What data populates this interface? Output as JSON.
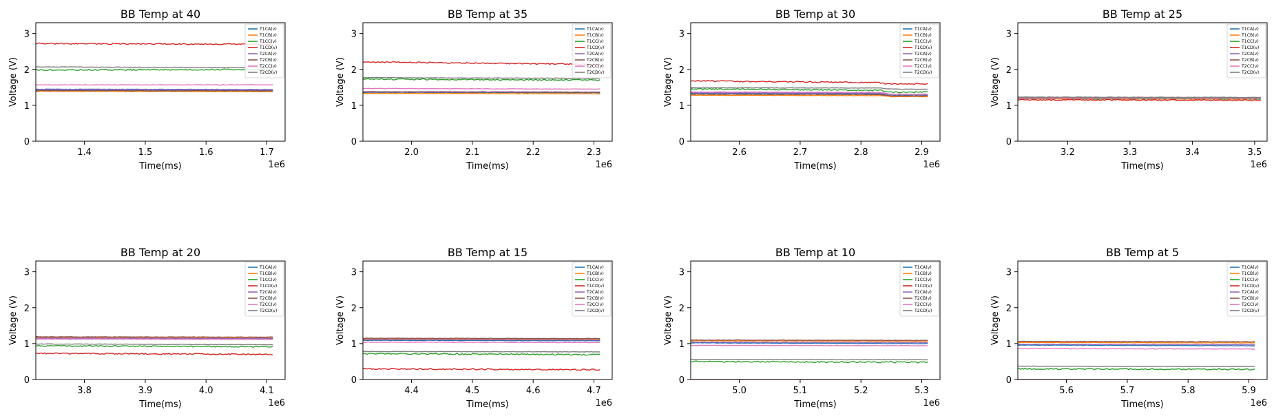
{
  "figure": {
    "series_names": [
      "T1CA(v)",
      "T1CB(v)",
      "T1CC(v)",
      "T1CD(v)",
      "T2CA(v)",
      "T2CB(v)",
      "T2CC(v)",
      "T2CD(v)"
    ],
    "series_colors": [
      "#1f77b4",
      "#ff7f0e",
      "#2ca02c",
      "#d62728",
      "#9467bd",
      "#8c564b",
      "#e377c2",
      "#7f7f7f"
    ],
    "xlabel": "Time(ms)",
    "ylabel": "Voltage (V)",
    "x_offset_text": "1e6",
    "legend_location": "upper right"
  },
  "chart_data": [
    {
      "type": "line",
      "title": "BB Temp at 40",
      "xlim": [
        1.32,
        1.73
      ],
      "ylim": [
        0,
        3.3
      ],
      "xticks": [
        1.4,
        1.5,
        1.6,
        1.7
      ],
      "xtick_labels": [
        "1.4",
        "1.5",
        "1.6",
        "1.7"
      ],
      "yticks": [
        0,
        1,
        2,
        3
      ],
      "ytick_labels": [
        "0",
        "1",
        "2",
        "3"
      ],
      "x": [
        1.32,
        1.71
      ],
      "series": [
        {
          "name": "T1CA(v)",
          "values": [
            1.43,
            1.42
          ]
        },
        {
          "name": "T1CB(v)",
          "values": [
            1.39,
            1.38
          ]
        },
        {
          "name": "T1CC(v)",
          "values": [
            1.98,
            2.0
          ]
        },
        {
          "name": "T1CD(v)",
          "values": [
            2.72,
            2.7
          ]
        },
        {
          "name": "T2CA(v)",
          "values": [
            1.45,
            1.44
          ]
        },
        {
          "name": "T2CB(v)",
          "values": [
            1.41,
            1.4
          ]
        },
        {
          "name": "T2CC(v)",
          "values": [
            1.57,
            1.57
          ]
        },
        {
          "name": "T2CD(v)",
          "values": [
            2.07,
            2.05
          ]
        }
      ]
    },
    {
      "type": "line",
      "title": "BB Temp at 35",
      "xlim": [
        1.92,
        2.33
      ],
      "ylim": [
        0,
        3.3
      ],
      "xticks": [
        2.0,
        2.1,
        2.2,
        2.3
      ],
      "xtick_labels": [
        "2.0",
        "2.1",
        "2.2",
        "2.3"
      ],
      "yticks": [
        0,
        1,
        2,
        3
      ],
      "ytick_labels": [
        "0",
        "1",
        "2",
        "3"
      ],
      "x": [
        1.92,
        2.31
      ],
      "series": [
        {
          "name": "T1CA(v)",
          "values": [
            1.36,
            1.35
          ]
        },
        {
          "name": "T1CB(v)",
          "values": [
            1.33,
            1.32
          ]
        },
        {
          "name": "T1CC(v)",
          "values": [
            1.73,
            1.7
          ]
        },
        {
          "name": "T1CD(v)",
          "values": [
            2.21,
            2.14
          ]
        },
        {
          "name": "T2CA(v)",
          "values": [
            1.38,
            1.37
          ]
        },
        {
          "name": "T2CB(v)",
          "values": [
            1.37,
            1.36
          ]
        },
        {
          "name": "T2CC(v)",
          "values": [
            1.47,
            1.45
          ]
        },
        {
          "name": "T2CD(v)",
          "values": [
            1.77,
            1.75
          ]
        }
      ]
    },
    {
      "type": "line",
      "title": "BB Temp at 30",
      "xlim": [
        2.52,
        2.93
      ],
      "ylim": [
        0,
        3.3
      ],
      "xticks": [
        2.6,
        2.7,
        2.8,
        2.9
      ],
      "xtick_labels": [
        "2.6",
        "2.7",
        "2.8",
        "2.9"
      ],
      "yticks": [
        0,
        1,
        2,
        3
      ],
      "ytick_labels": [
        "0",
        "1",
        "2",
        "3"
      ],
      "x": [
        2.52,
        2.83,
        2.85,
        2.91
      ],
      "series": [
        {
          "name": "T1CA(v)",
          "values": [
            1.33,
            1.32,
            1.27,
            1.27
          ]
        },
        {
          "name": "T1CB(v)",
          "values": [
            1.28,
            1.27,
            1.24,
            1.24
          ]
        },
        {
          "name": "T1CC(v)",
          "values": [
            1.46,
            1.42,
            1.36,
            1.37
          ]
        },
        {
          "name": "T1CD(v)",
          "values": [
            1.68,
            1.63,
            1.59,
            1.6
          ]
        },
        {
          "name": "T2CA(v)",
          "values": [
            1.35,
            1.34,
            1.3,
            1.3
          ]
        },
        {
          "name": "T2CB(v)",
          "values": [
            1.31,
            1.3,
            1.26,
            1.26
          ]
        },
        {
          "name": "T2CC(v)",
          "values": [
            1.37,
            1.36,
            1.31,
            1.31
          ]
        },
        {
          "name": "T2CD(v)",
          "values": [
            1.49,
            1.48,
            1.45,
            1.45
          ]
        }
      ]
    },
    {
      "type": "line",
      "title": "BB Temp at 25",
      "xlim": [
        3.12,
        3.52
      ],
      "ylim": [
        0,
        3.3
      ],
      "xticks": [
        3.2,
        3.3,
        3.4,
        3.5
      ],
      "xtick_labels": [
        "3.2",
        "3.3",
        "3.4",
        "3.5"
      ],
      "yticks": [
        0,
        1,
        2,
        3
      ],
      "ytick_labels": [
        "0",
        "1",
        "2",
        "3"
      ],
      "x": [
        3.12,
        3.51
      ],
      "series": [
        {
          "name": "T1CA(v)",
          "values": [
            1.2,
            1.19
          ]
        },
        {
          "name": "T1CB(v)",
          "values": [
            1.18,
            1.17
          ]
        },
        {
          "name": "T1CC(v)",
          "values": [
            1.19,
            1.18
          ]
        },
        {
          "name": "T1CD(v)",
          "values": [
            1.15,
            1.14
          ]
        },
        {
          "name": "T2CA(v)",
          "values": [
            1.21,
            1.2
          ]
        },
        {
          "name": "T2CB(v)",
          "values": [
            1.22,
            1.21
          ]
        },
        {
          "name": "T2CC(v)",
          "values": [
            1.2,
            1.2
          ]
        },
        {
          "name": "T2CD(v)",
          "values": [
            1.23,
            1.22
          ]
        }
      ]
    },
    {
      "type": "line",
      "title": "BB Temp at 20",
      "xlim": [
        3.72,
        4.13
      ],
      "ylim": [
        0,
        3.3
      ],
      "xticks": [
        3.8,
        3.9,
        4.0,
        4.1
      ],
      "xtick_labels": [
        "3.8",
        "3.9",
        "4.0",
        "4.1"
      ],
      "yticks": [
        0,
        1,
        2,
        3
      ],
      "ytick_labels": [
        "0",
        "1",
        "2",
        "3"
      ],
      "x": [
        3.72,
        4.11
      ],
      "series": [
        {
          "name": "T1CA(v)",
          "values": [
            1.13,
            1.12
          ]
        },
        {
          "name": "T1CB(v)",
          "values": [
            1.17,
            1.16
          ]
        },
        {
          "name": "T1CC(v)",
          "values": [
            0.94,
            0.91
          ]
        },
        {
          "name": "T1CD(v)",
          "values": [
            0.73,
            0.7
          ]
        },
        {
          "name": "T2CA(v)",
          "values": [
            1.15,
            1.14
          ]
        },
        {
          "name": "T2CB(v)",
          "values": [
            1.19,
            1.18
          ]
        },
        {
          "name": "T2CC(v)",
          "values": [
            1.13,
            1.12
          ]
        },
        {
          "name": "T2CD(v)",
          "values": [
            0.99,
            0.97
          ]
        }
      ]
    },
    {
      "type": "line",
      "title": "BB Temp at 15",
      "xlim": [
        4.32,
        4.73
      ],
      "ylim": [
        0,
        3.3
      ],
      "xticks": [
        4.4,
        4.5,
        4.6,
        4.7
      ],
      "xtick_labels": [
        "4.4",
        "4.5",
        "4.6",
        "4.7"
      ],
      "yticks": [
        0,
        1,
        2,
        3
      ],
      "ytick_labels": [
        "0",
        "1",
        "2",
        "3"
      ],
      "x": [
        4.32,
        4.71
      ],
      "series": [
        {
          "name": "T1CA(v)",
          "values": [
            1.09,
            1.08
          ]
        },
        {
          "name": "T1CB(v)",
          "values": [
            1.13,
            1.12
          ]
        },
        {
          "name": "T1CC(v)",
          "values": [
            0.72,
            0.69
          ]
        },
        {
          "name": "T1CD(v)",
          "values": [
            0.3,
            0.27
          ]
        },
        {
          "name": "T2CA(v)",
          "values": [
            1.11,
            1.1
          ]
        },
        {
          "name": "T2CB(v)",
          "values": [
            1.15,
            1.14
          ]
        },
        {
          "name": "T2CC(v)",
          "values": [
            1.04,
            1.03
          ]
        },
        {
          "name": "T2CD(v)",
          "values": [
            0.78,
            0.77
          ]
        }
      ]
    },
    {
      "type": "line",
      "title": "BB Temp at 10",
      "xlim": [
        4.92,
        5.33
      ],
      "ylim": [
        0,
        3.3
      ],
      "xticks": [
        5.0,
        5.1,
        5.2,
        5.3
      ],
      "xtick_labels": [
        "5.0",
        "5.1",
        "5.2",
        "5.3"
      ],
      "yticks": [
        0,
        1,
        2,
        3
      ],
      "ytick_labels": [
        "0",
        "1",
        "2",
        "3"
      ],
      "x": [
        4.92,
        5.31
      ],
      "series": [
        {
          "name": "T1CA(v)",
          "values": [
            1.02,
            1.0
          ]
        },
        {
          "name": "T1CB(v)",
          "values": [
            1.08,
            1.07
          ]
        },
        {
          "name": "T1CC(v)",
          "values": [
            0.5,
            0.48
          ]
        },
        {
          "name": "T1CD(v)",
          "values": [
            0.0,
            0.0
          ]
        },
        {
          "name": "T2CA(v)",
          "values": [
            1.04,
            1.03
          ]
        },
        {
          "name": "T2CB(v)",
          "values": [
            1.1,
            1.09
          ]
        },
        {
          "name": "T2CC(v)",
          "values": [
            0.95,
            0.94
          ]
        },
        {
          "name": "T2CD(v)",
          "values": [
            0.56,
            0.55
          ]
        }
      ]
    },
    {
      "type": "line",
      "title": "BB Temp at 5",
      "xlim": [
        5.52,
        5.93
      ],
      "ylim": [
        0,
        3.3
      ],
      "xticks": [
        5.6,
        5.7,
        5.8,
        5.9
      ],
      "xtick_labels": [
        "5.6",
        "5.7",
        "5.8",
        "5.9"
      ],
      "yticks": [
        0,
        1,
        2,
        3
      ],
      "ytick_labels": [
        "0",
        "1",
        "2",
        "3"
      ],
      "x": [
        5.52,
        5.91
      ],
      "series": [
        {
          "name": "T1CA(v)",
          "values": [
            0.96,
            0.94
          ]
        },
        {
          "name": "T1CB(v)",
          "values": [
            1.03,
            1.02
          ]
        },
        {
          "name": "T1CC(v)",
          "values": [
            0.3,
            0.28
          ]
        },
        {
          "name": "T1CD(v)",
          "values": [
            0.0,
            0.0
          ]
        },
        {
          "name": "T2CA(v)",
          "values": [
            0.98,
            0.97
          ]
        },
        {
          "name": "T2CB(v)",
          "values": [
            1.06,
            1.05
          ]
        },
        {
          "name": "T2CC(v)",
          "values": [
            0.86,
            0.85
          ]
        },
        {
          "name": "T2CD(v)",
          "values": [
            0.37,
            0.36
          ]
        }
      ]
    }
  ]
}
